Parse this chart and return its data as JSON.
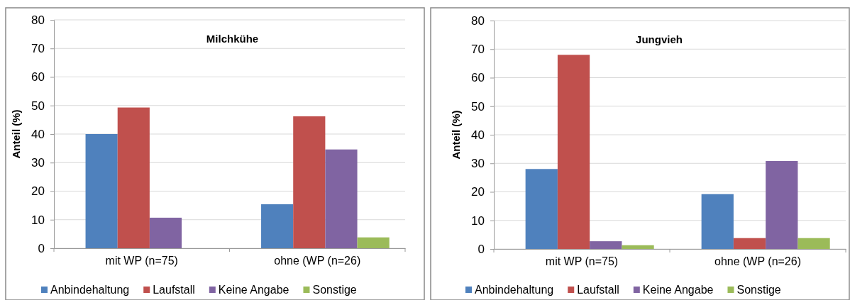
{
  "chart_data": [
    {
      "type": "bar",
      "title": "Milchkühe",
      "ylabel": "Anteil (%)",
      "categories": [
        "mit WP (n=75)",
        "ohne (WP (n=26)"
      ],
      "ylim": [
        0,
        80
      ],
      "yticks": [
        0,
        10,
        20,
        30,
        40,
        50,
        60,
        70,
        80
      ],
      "grid": "y",
      "legend": "bottom",
      "series": [
        {
          "name": "Anbindehaltung",
          "color": "#4f81bd",
          "values": [
            40,
            15.4
          ]
        },
        {
          "name": "Laufstall",
          "color": "#c0504d",
          "values": [
            49.3,
            46.2
          ]
        },
        {
          "name": "Keine Angabe",
          "color": "#8064a2",
          "values": [
            10.7,
            34.6
          ]
        },
        {
          "name": "Sonstige",
          "color": "#9bbb59",
          "values": [
            0,
            3.8
          ]
        }
      ]
    },
    {
      "type": "bar",
      "title": "Jungvieh",
      "ylabel": "Anteil (%)",
      "categories": [
        "mit WP (n=75)",
        "ohne (WP (n=26)"
      ],
      "ylim": [
        0,
        80
      ],
      "yticks": [
        0,
        10,
        20,
        30,
        40,
        50,
        60,
        70,
        80
      ],
      "grid": "y",
      "legend": "bottom",
      "series": [
        {
          "name": "Anbindehaltung",
          "color": "#4f81bd",
          "values": [
            28,
            19.2
          ]
        },
        {
          "name": "Laufstall",
          "color": "#c0504d",
          "values": [
            68,
            3.8
          ]
        },
        {
          "name": "Keine Angabe",
          "color": "#8064a2",
          "values": [
            2.7,
            30.8
          ]
        },
        {
          "name": "Sonstige",
          "color": "#9bbb59",
          "values": [
            1.3,
            3.8
          ]
        }
      ]
    }
  ]
}
